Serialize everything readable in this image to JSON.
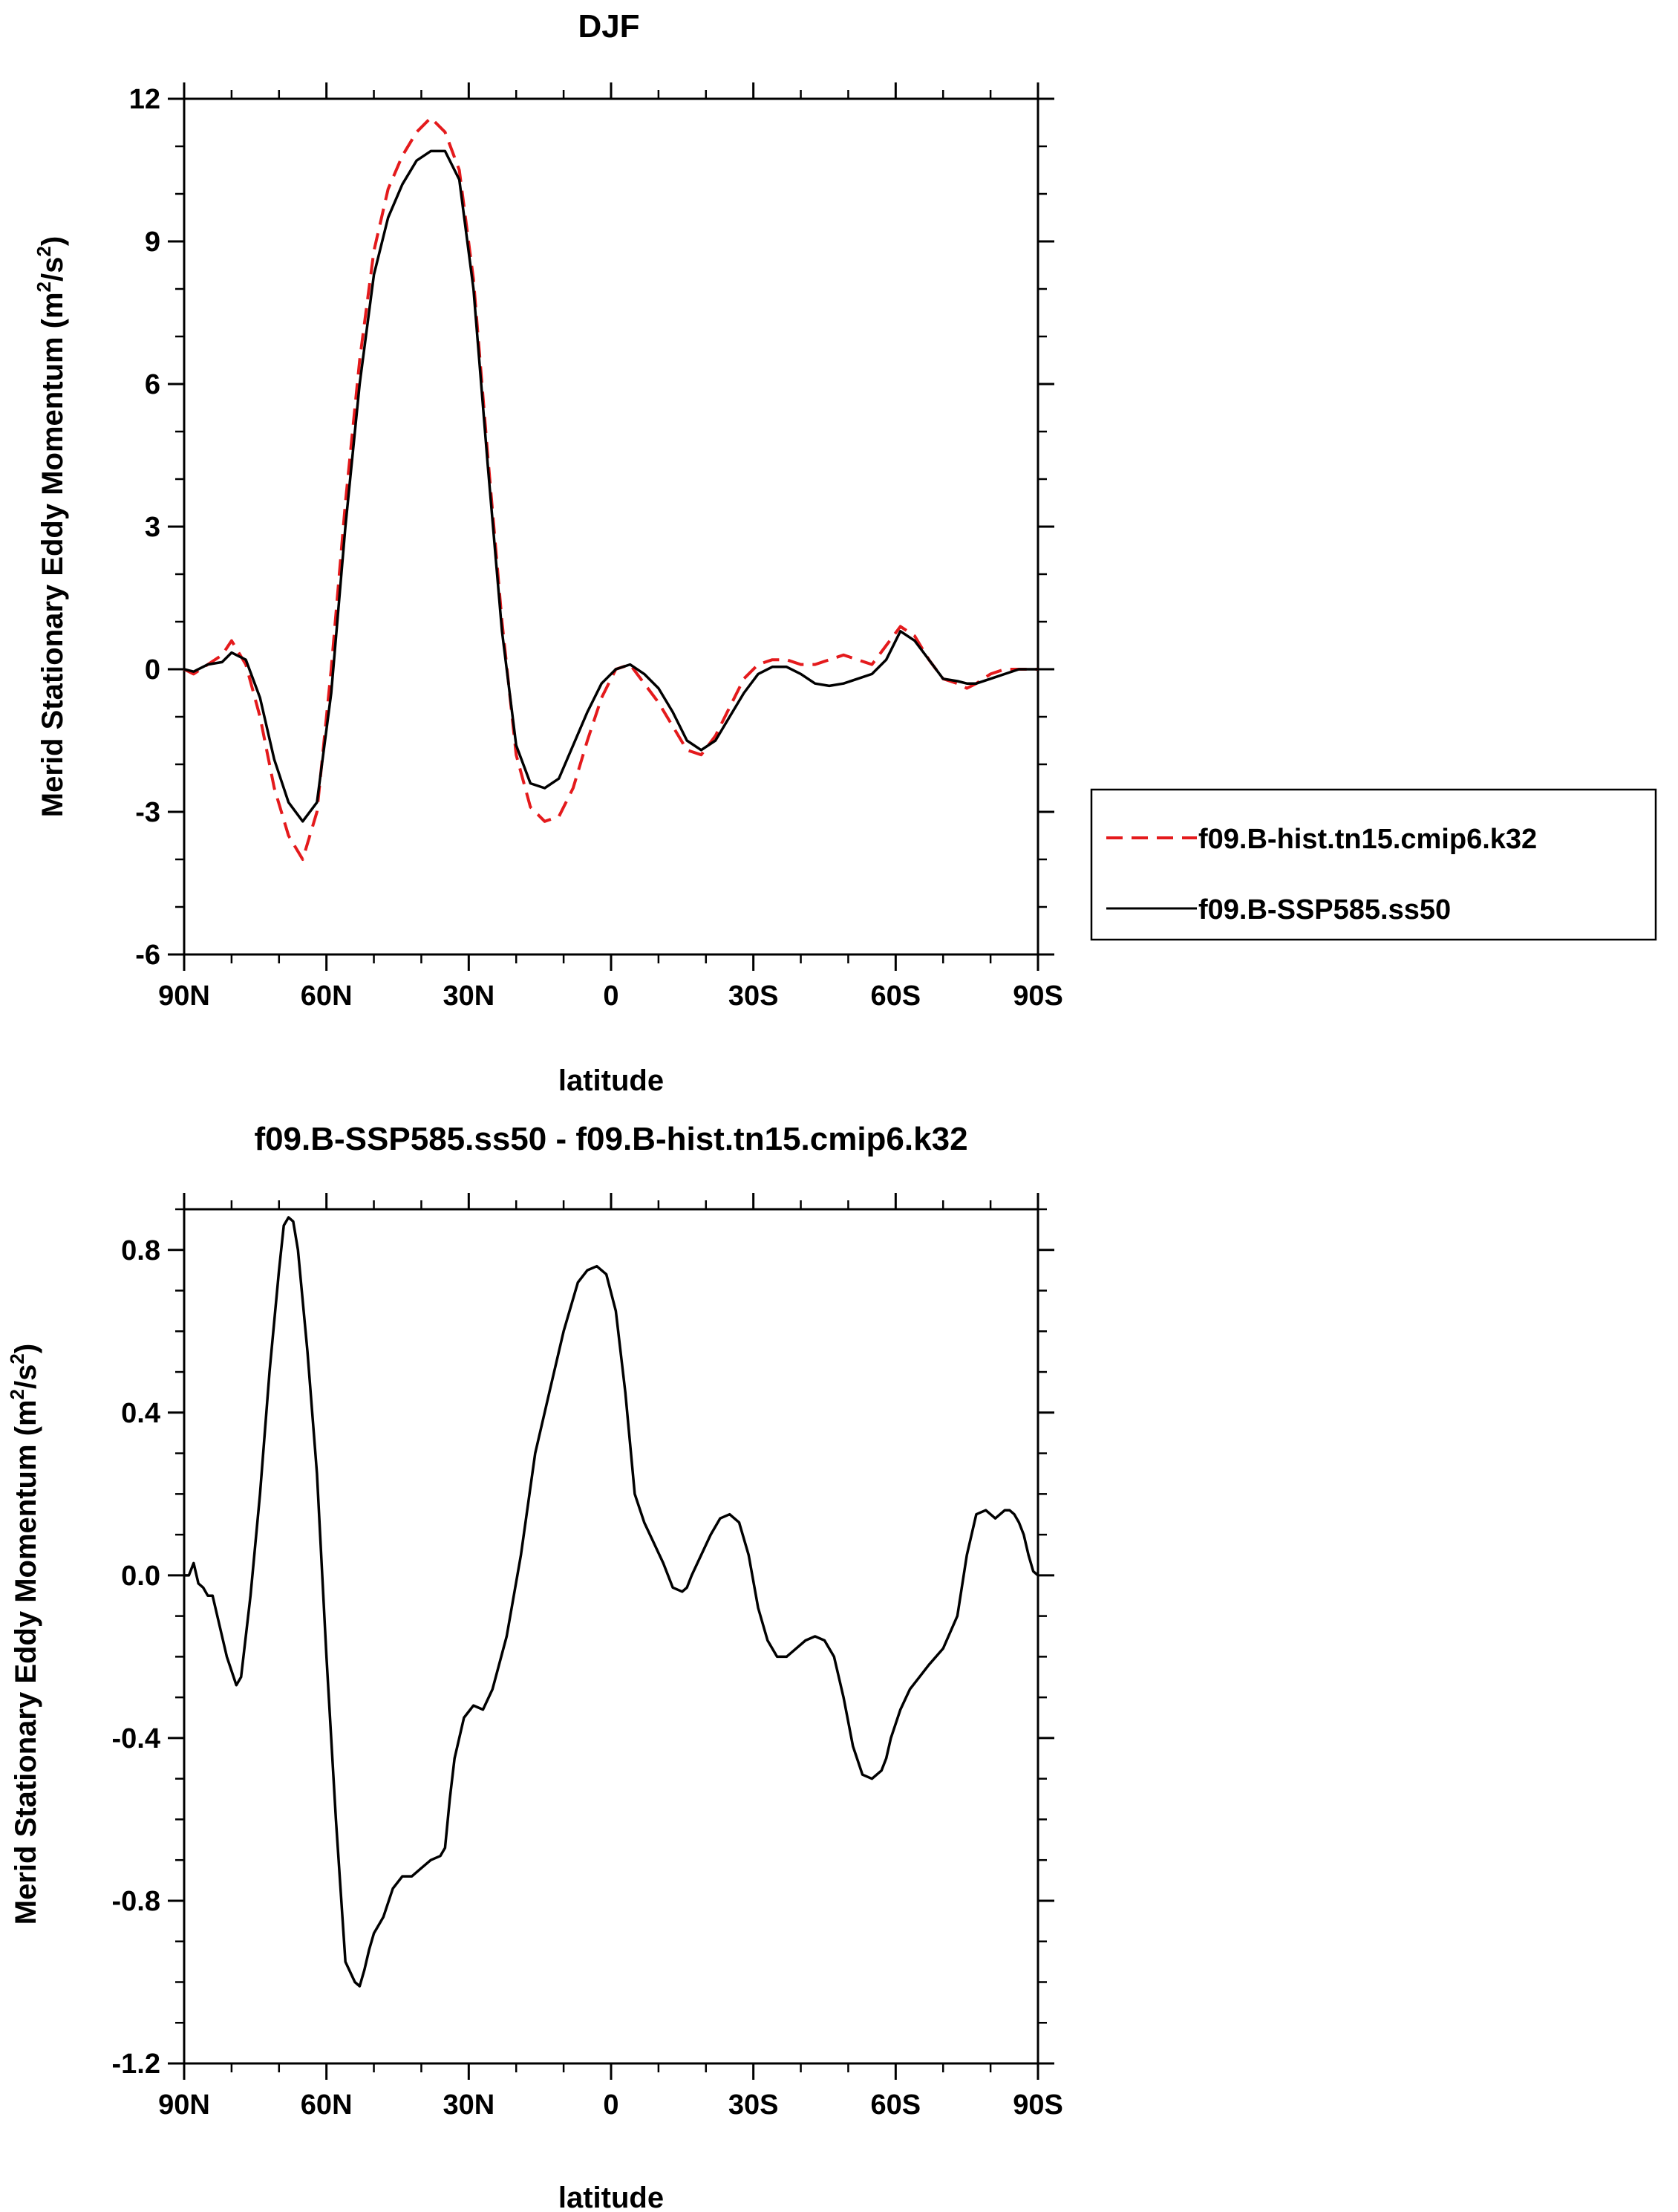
{
  "chart_data": [
    {
      "type": "line",
      "title": "DJF",
      "xlabel": "latitude",
      "ylabel": "Merid Stationary Eddy Momentum (m²/s²)",
      "ylabel_main": "Merid Stationary Eddy Momentum (m",
      "ylabel_sup1": "2",
      "ylabel_mid": "/s",
      "ylabel_sup2": "2",
      "ylabel_end": ")",
      "xlim": [
        90,
        -90
      ],
      "ylim": [
        -6,
        12
      ],
      "xticks": [
        90,
        60,
        30,
        0,
        -30,
        -60,
        -90
      ],
      "xtick_labels": [
        "90N",
        "60N",
        "30N",
        "0",
        "30S",
        "60S",
        "90S"
      ],
      "yticks": [
        -6,
        -3,
        0,
        3,
        6,
        9,
        12
      ],
      "ytick_labels": [
        "-6",
        "-3",
        "0",
        "3",
        "6",
        "9",
        "12"
      ],
      "legend_position": "outside-right",
      "series": [
        {
          "name": "f09.B-hist.tn15.cmip6.k32",
          "color": "#e41a1c",
          "dash": "dashed",
          "x": [
            90,
            88,
            85,
            82,
            80,
            77,
            74,
            71,
            68,
            65,
            62,
            59,
            56,
            53,
            50,
            47,
            44,
            41,
            38,
            35,
            32,
            29,
            26,
            23,
            20,
            17,
            14,
            11,
            8,
            5,
            2,
            -1,
            -4,
            -7,
            -10,
            -13,
            -16,
            -19,
            -22,
            -25,
            -28,
            -31,
            -34,
            -37,
            -40,
            -43,
            -46,
            -49,
            -52,
            -55,
            -58,
            -61,
            -64,
            -67,
            -70,
            -73,
            -75,
            -77,
            -80,
            -83,
            -86,
            -88,
            -90
          ],
          "y": [
            0.0,
            -0.1,
            0.1,
            0.3,
            0.6,
            0.1,
            -1.0,
            -2.5,
            -3.5,
            -4.0,
            -3.0,
            0.0,
            3.5,
            6.5,
            8.8,
            10.1,
            10.8,
            11.3,
            11.6,
            11.3,
            10.5,
            8.2,
            4.5,
            1.0,
            -1.8,
            -2.9,
            -3.2,
            -3.1,
            -2.5,
            -1.5,
            -0.6,
            0.0,
            0.1,
            -0.3,
            -0.7,
            -1.2,
            -1.7,
            -1.8,
            -1.4,
            -0.8,
            -0.2,
            0.1,
            0.2,
            0.2,
            0.1,
            0.1,
            0.2,
            0.3,
            0.2,
            0.1,
            0.5,
            0.9,
            0.7,
            0.2,
            -0.2,
            -0.3,
            -0.4,
            -0.3,
            -0.1,
            0.0,
            0.0,
            0.0,
            0.0
          ]
        },
        {
          "name": "f09.B-SSP585.ss50",
          "color": "#000000",
          "dash": "solid",
          "x": [
            90,
            88,
            85,
            82,
            80,
            77,
            74,
            71,
            68,
            65,
            62,
            59,
            56,
            53,
            50,
            47,
            44,
            41,
            38,
            35,
            32,
            29,
            26,
            23,
            20,
            17,
            14,
            11,
            8,
            5,
            2,
            -1,
            -4,
            -7,
            -10,
            -13,
            -16,
            -19,
            -22,
            -25,
            -28,
            -31,
            -34,
            -37,
            -40,
            -43,
            -46,
            -49,
            -52,
            -55,
            -58,
            -61,
            -64,
            -67,
            -70,
            -73,
            -75,
            -77,
            -80,
            -83,
            -86,
            -88,
            -90
          ],
          "y": [
            0.0,
            -0.05,
            0.1,
            0.15,
            0.35,
            0.2,
            -0.6,
            -1.9,
            -2.8,
            -3.2,
            -2.8,
            -0.5,
            3.0,
            6.0,
            8.3,
            9.5,
            10.2,
            10.7,
            10.9,
            10.9,
            10.3,
            8.0,
            4.3,
            0.8,
            -1.6,
            -2.4,
            -2.5,
            -2.3,
            -1.6,
            -0.9,
            -0.3,
            0.0,
            0.1,
            -0.1,
            -0.4,
            -0.9,
            -1.5,
            -1.7,
            -1.5,
            -1.0,
            -0.5,
            -0.1,
            0.05,
            0.05,
            -0.1,
            -0.3,
            -0.35,
            -0.3,
            -0.2,
            -0.1,
            0.2,
            0.8,
            0.6,
            0.2,
            -0.2,
            -0.25,
            -0.3,
            -0.3,
            -0.2,
            -0.1,
            0.0,
            0.0,
            0.0
          ]
        }
      ]
    },
    {
      "type": "line",
      "title": "f09.B-SSP585.ss50 - f09.B-hist.tn15.cmip6.k32",
      "xlabel": "latitude",
      "ylabel": "Merid Stationary Eddy Momentum (m²/s²)",
      "ylabel_main": "Merid Stationary Eddy Momentum (m",
      "ylabel_sup1": "2",
      "ylabel_mid": "/s",
      "ylabel_sup2": "2",
      "ylabel_end": ")",
      "xlim": [
        90,
        -90
      ],
      "ylim": [
        -1.2,
        0.9
      ],
      "xticks": [
        90,
        60,
        30,
        0,
        -30,
        -60,
        -90
      ],
      "xtick_labels": [
        "90N",
        "60N",
        "30N",
        "0",
        "30S",
        "60S",
        "90S"
      ],
      "yticks": [
        -1.2,
        -0.8,
        -0.4,
        0.0,
        0.4,
        0.8
      ],
      "ytick_labels": [
        "-1.2",
        "-0.8",
        "-0.4",
        "0.0",
        "0.4",
        "0.8"
      ],
      "series": [
        {
          "color": "#000000",
          "dash": "solid",
          "x": [
            90,
            89,
            88,
            87,
            86,
            85,
            84,
            83,
            81,
            79,
            78,
            76,
            74,
            72,
            70,
            69,
            68,
            67,
            66,
            64,
            62,
            60,
            58,
            56,
            54,
            53,
            52,
            51,
            50,
            48,
            46,
            44,
            42,
            40,
            38,
            36,
            35,
            34,
            33,
            31,
            29,
            27,
            25,
            22,
            19,
            16,
            13,
            10,
            7,
            5,
            3,
            1,
            -1,
            -3,
            -5,
            -7,
            -9,
            -11,
            -13,
            -15,
            -16,
            -17,
            -19,
            -21,
            -23,
            -25,
            -27,
            -29,
            -31,
            -33,
            -35,
            -37,
            -39,
            -41,
            -43,
            -45,
            -47,
            -49,
            -51,
            -53,
            -55,
            -57,
            -58,
            -59,
            -61,
            -63,
            -65,
            -67,
            -70,
            -73,
            -75,
            -77,
            -79,
            -81,
            -83,
            -84,
            -85,
            -86,
            -87,
            -88,
            -89,
            -90
          ],
          "y": [
            0.0,
            0.0,
            0.03,
            -0.02,
            -0.03,
            -0.05,
            -0.05,
            -0.1,
            -0.2,
            -0.27,
            -0.25,
            -0.05,
            0.2,
            0.5,
            0.75,
            0.86,
            0.88,
            0.87,
            0.8,
            0.55,
            0.25,
            -0.2,
            -0.6,
            -0.95,
            -1.0,
            -1.01,
            -0.97,
            -0.92,
            -0.88,
            -0.84,
            -0.77,
            -0.74,
            -0.74,
            -0.72,
            -0.7,
            -0.69,
            -0.67,
            -0.55,
            -0.45,
            -0.35,
            -0.32,
            -0.33,
            -0.28,
            -0.15,
            0.05,
            0.3,
            0.45,
            0.6,
            0.72,
            0.75,
            0.76,
            0.74,
            0.65,
            0.45,
            0.2,
            0.13,
            0.08,
            0.03,
            -0.03,
            -0.04,
            -0.03,
            0.0,
            0.05,
            0.1,
            0.14,
            0.15,
            0.13,
            0.05,
            -0.08,
            -0.16,
            -0.2,
            -0.2,
            -0.18,
            -0.16,
            -0.15,
            -0.16,
            -0.2,
            -0.3,
            -0.42,
            -0.49,
            -0.5,
            -0.48,
            -0.45,
            -0.4,
            -0.33,
            -0.28,
            -0.25,
            -0.22,
            -0.18,
            -0.1,
            0.05,
            0.15,
            0.16,
            0.14,
            0.16,
            0.16,
            0.15,
            0.13,
            0.1,
            0.05,
            0.01,
            0.0
          ]
        }
      ]
    }
  ]
}
